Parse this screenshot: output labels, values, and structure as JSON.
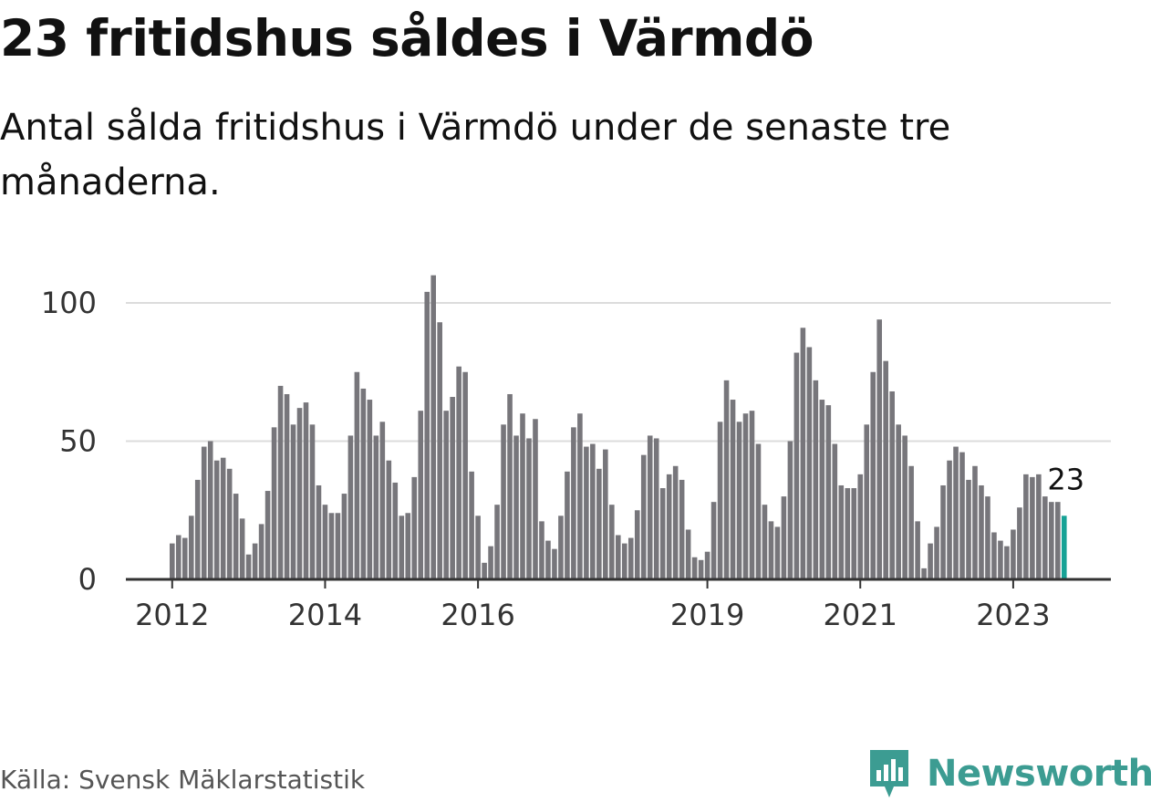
{
  "title": "23 fritidshus såldes i Värmdö",
  "subtitle": "Antal sålda fritidshus i Värmdö under de senaste tre månaderna.",
  "source": "Källa: Svensk Mäklarstatistik",
  "brand": {
    "name": "Newsworthy",
    "icon": "newsworthy-logo-icon",
    "color": "#3c9c92"
  },
  "chart_data": {
    "type": "bar",
    "ylim": [
      0,
      110
    ],
    "y_ticks": [
      0,
      50,
      100
    ],
    "grid": true,
    "x_tick_labels": [
      "2012",
      "2014",
      "2016",
      "2019",
      "2021",
      "2023"
    ],
    "bar_color": "#77767b",
    "highlight_color": "#17a296",
    "highlight_label": "23",
    "values": [
      13,
      16,
      15,
      23,
      36,
      48,
      50,
      43,
      44,
      40,
      31,
      22,
      9,
      13,
      20,
      32,
      55,
      70,
      67,
      56,
      62,
      64,
      56,
      34,
      27,
      24,
      24,
      31,
      52,
      75,
      69,
      65,
      52,
      57,
      43,
      35,
      23,
      24,
      37,
      61,
      104,
      110,
      93,
      61,
      66,
      77,
      75,
      39,
      23,
      6,
      12,
      27,
      56,
      67,
      52,
      60,
      51,
      58,
      21,
      14,
      11,
      23,
      39,
      55,
      60,
      48,
      49,
      40,
      47,
      27,
      16,
      13,
      15,
      25,
      45,
      52,
      51,
      33,
      38,
      41,
      36,
      18,
      8,
      7,
      10,
      28,
      57,
      72,
      65,
      57,
      60,
      61,
      49,
      27,
      21,
      19,
      30,
      50,
      82,
      91,
      84,
      72,
      65,
      63,
      49,
      34,
      33,
      33,
      38,
      56,
      75,
      94,
      79,
      68,
      56,
      52,
      41,
      21,
      4,
      13,
      19,
      34,
      43,
      48,
      46,
      36,
      41,
      34,
      30,
      17,
      14,
      12,
      18,
      26,
      38,
      37,
      38,
      30,
      28,
      28,
      23
    ]
  }
}
